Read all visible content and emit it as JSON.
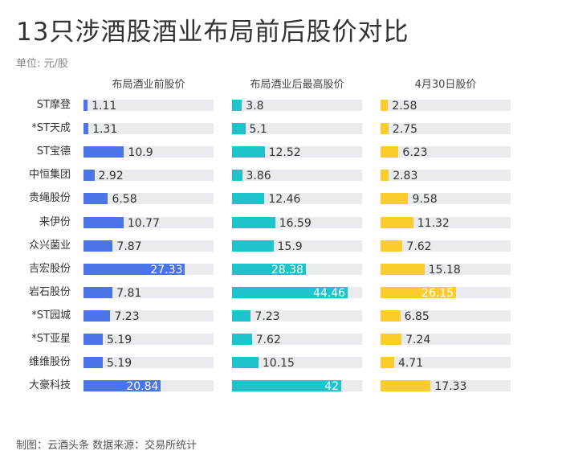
{
  "title": "13只涉酒股酒业布局前后股价对比",
  "unit_label": "单位: 元/股",
  "footer": "制图：云酒头条    数据来源：交易所统计",
  "chart_data": {
    "type": "bar",
    "orientation": "horizontal",
    "categories": [
      "ST摩登",
      "*ST天成",
      "ST宝德",
      "中恒集团",
      "贵绳股份",
      "来伊份",
      "众兴菌业",
      "吉宏股份",
      "岩石股份",
      "*ST园城",
      "*ST亚星",
      "维维股份",
      "大豪科技"
    ],
    "series": [
      {
        "name": "布局酒业前股价",
        "color": "#4a74e8",
        "xlim": [
          0,
          35
        ],
        "values": [
          1.11,
          1.31,
          10.9,
          2.92,
          6.58,
          10.77,
          7.87,
          27.33,
          7.81,
          7.23,
          5.19,
          5.19,
          20.84
        ],
        "labels": [
          "1.11",
          "1.31",
          "10.9",
          "2.92",
          "6.58",
          "10.77",
          "7.87",
          "27.33",
          "7.81",
          "7.23",
          "5.19",
          "5.19",
          "20.84"
        ]
      },
      {
        "name": "布局酒业后最高股价",
        "color": "#1dc4cc",
        "xlim": [
          0,
          50
        ],
        "values": [
          3.8,
          5.1,
          12.52,
          3.86,
          12.46,
          16.59,
          15.9,
          28.38,
          44.46,
          7.23,
          7.62,
          10.15,
          42
        ],
        "labels": [
          "3.8",
          "5.1",
          "12.52",
          "3.86",
          "12.46",
          "16.59",
          "15.9",
          "28.38",
          "44.46",
          "7.23",
          "7.62",
          "10.15",
          "42"
        ]
      },
      {
        "name": "4月30日股价",
        "color": "#fccc2e",
        "xlim": [
          0,
          45
        ],
        "values": [
          2.58,
          2.75,
          6.23,
          2.83,
          9.58,
          11.32,
          7.62,
          15.18,
          26.15,
          6.85,
          7.24,
          4.71,
          17.33
        ],
        "labels": [
          "2.58",
          "2.75",
          "6.23",
          "2.83",
          "9.58",
          "11.32",
          "7.62",
          "15.18",
          "26.15",
          "6.85",
          "7.24",
          "4.71",
          "17.33"
        ]
      }
    ],
    "track_color": "#e9ebef"
  }
}
